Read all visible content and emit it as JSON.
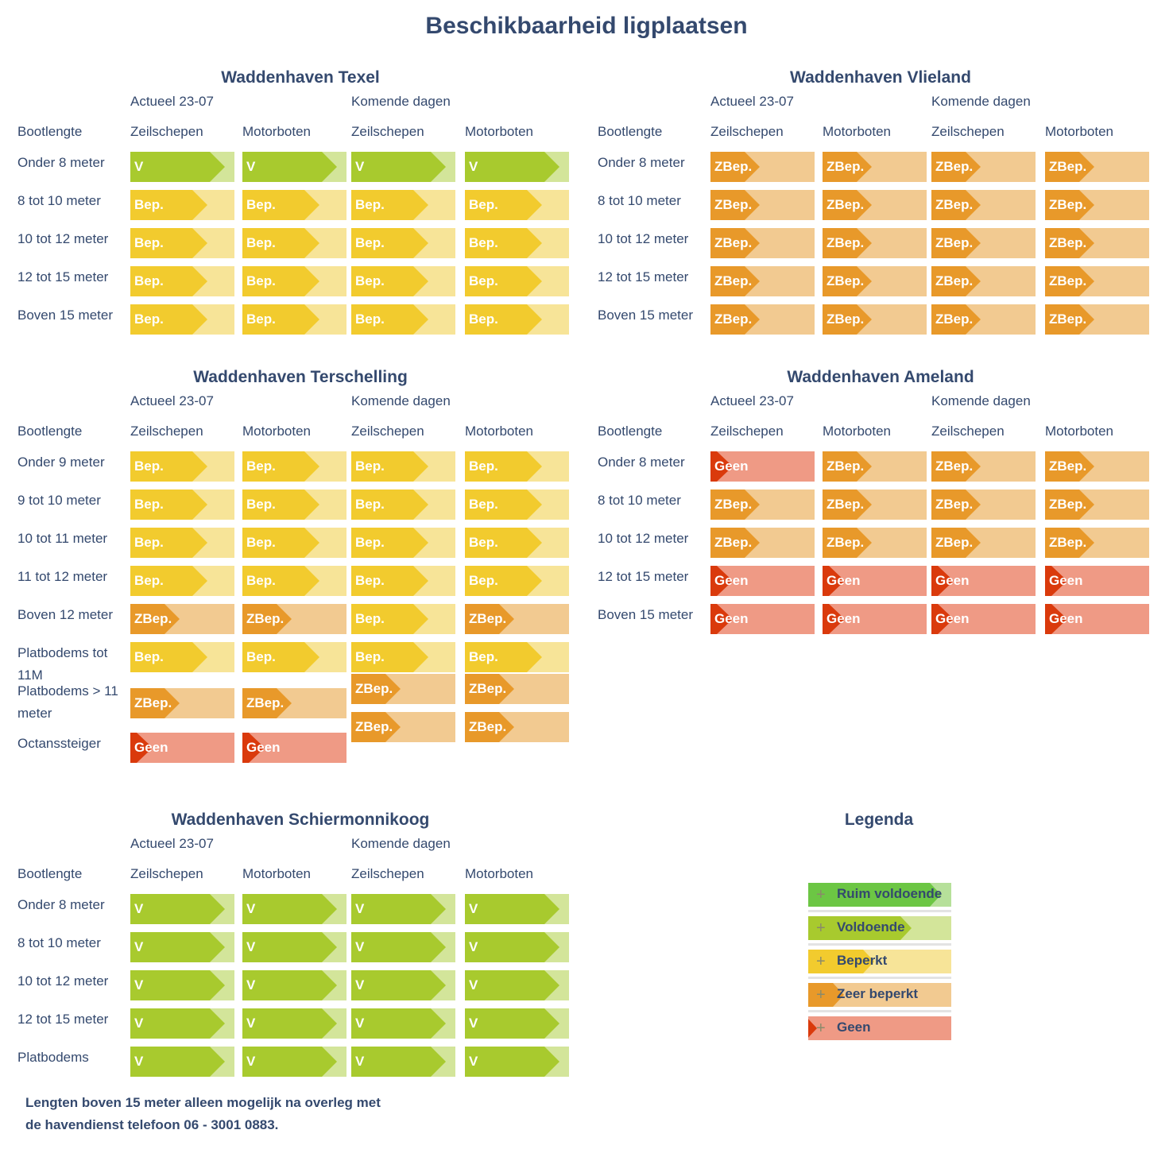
{
  "title": "Beschikbaarheid ligplaatsen",
  "status_colors": {
    "RV": {
      "dark": "#6cc644",
      "light": "#b6e09a",
      "label": "Ruim voldoende"
    },
    "V": {
      "dark": "#a8ca2e",
      "light": "#d3e59a",
      "label": "Voldoende"
    },
    "B": {
      "dark": "#f2cb2e",
      "light": "#f7e498",
      "label": "Beperkt"
    },
    "ZB": {
      "dark": "#e8992a",
      "light": "#f2ca91",
      "label": "Zeer beperkt"
    },
    "G": {
      "dark": "#da3a0c",
      "light": "#ef9a85",
      "label": "Geen"
    }
  },
  "cell_text": {
    "V": "V",
    "B": "Bep.",
    "ZB": "ZBep.",
    "G": "Geen"
  },
  "harbors": [
    {
      "name": "Waddenhaven Texel",
      "periods": [
        "Actueel 23-07",
        "Komende dagen"
      ],
      "columns": [
        "Bootlengte",
        "Zeilschepen",
        "Motorboten",
        "Zeilschepen",
        "Motorboten"
      ],
      "rows": [
        {
          "label": "Onder 8 meter",
          "cells": [
            "V",
            "V",
            "V",
            "V"
          ]
        },
        {
          "label": "8 tot 10 meter",
          "cells": [
            "B",
            "B",
            "B",
            "B"
          ]
        },
        {
          "label": "10 tot 12 meter",
          "cells": [
            "B",
            "B",
            "B",
            "B"
          ]
        },
        {
          "label": "12 tot 15 meter",
          "cells": [
            "B",
            "B",
            "B",
            "B"
          ]
        },
        {
          "label": "Boven 15 meter",
          "cells": [
            "B",
            "B",
            "B",
            "B"
          ]
        }
      ]
    },
    {
      "name": "Waddenhaven Vlieland",
      "periods": [
        "Actueel 23-07",
        "Komende dagen"
      ],
      "columns": [
        "Bootlengte",
        "Zeilschepen",
        "Motorboten",
        "Zeilschepen",
        "Motorboten"
      ],
      "rows": [
        {
          "label": "Onder 8 meter",
          "cells": [
            "ZB",
            "ZB",
            "ZB",
            "ZB"
          ]
        },
        {
          "label": "8 tot 10 meter",
          "cells": [
            "ZB",
            "ZB",
            "ZB",
            "ZB"
          ]
        },
        {
          "label": "10 tot 12 meter",
          "cells": [
            "ZB",
            "ZB",
            "ZB",
            "ZB"
          ]
        },
        {
          "label": "12 tot 15 meter",
          "cells": [
            "ZB",
            "ZB",
            "ZB",
            "ZB"
          ]
        },
        {
          "label": "Boven 15 meter",
          "cells": [
            "ZB",
            "ZB",
            "ZB",
            "ZB"
          ]
        }
      ]
    },
    {
      "name": "Waddenhaven Terschelling",
      "periods": [
        "Actueel 23-07",
        "Komende dagen"
      ],
      "columns": [
        "Bootlengte",
        "Zeilschepen",
        "Motorboten",
        "Zeilschepen",
        "Motorboten"
      ],
      "rows": [
        {
          "label": "Onder 9 meter",
          "cells": [
            "B",
            "B",
            "B",
            "B"
          ]
        },
        {
          "label": "9 tot 10 meter",
          "cells": [
            "B",
            "B",
            "B",
            "B"
          ]
        },
        {
          "label": "10 tot 11 meter",
          "cells": [
            "B",
            "B",
            "B",
            "B"
          ]
        },
        {
          "label": "11 tot 12 meter",
          "cells": [
            "B",
            "B",
            "B",
            "B"
          ]
        },
        {
          "label": "Boven 12 meter",
          "cells": [
            "ZB",
            "ZB",
            "B",
            "ZB"
          ]
        },
        {
          "label": "Platbodems tot 11M",
          "cells": [
            "B",
            "B",
            "B",
            "B"
          ]
        },
        {
          "label": "Platbodems > 11 meter",
          "cells": [
            "ZB",
            "ZB",
            [
              "ZB",
              "ZB"
            ],
            [
              "ZB",
              "ZB"
            ]
          ]
        },
        {
          "label": "Octanssteiger",
          "cells": [
            "G",
            "G",
            null,
            null
          ]
        }
      ]
    },
    {
      "name": "Waddenhaven Ameland",
      "periods": [
        "Actueel 23-07",
        "Komende dagen"
      ],
      "columns": [
        "Bootlengte",
        "Zeilschepen",
        "Motorboten",
        "Zeilschepen",
        "Motorboten"
      ],
      "rows": [
        {
          "label": "Onder 8 meter",
          "cells": [
            "G",
            "ZB",
            "ZB",
            "ZB"
          ]
        },
        {
          "label": "8 tot 10 meter",
          "cells": [
            "ZB",
            "ZB",
            "ZB",
            "ZB"
          ]
        },
        {
          "label": "10 tot 12 meter",
          "cells": [
            "ZB",
            "ZB",
            "ZB",
            "ZB"
          ]
        },
        {
          "label": "12 tot 15 meter",
          "cells": [
            "G",
            "G",
            "G",
            "G"
          ]
        },
        {
          "label": "Boven 15 meter",
          "cells": [
            "G",
            "G",
            "G",
            "G"
          ]
        }
      ]
    },
    {
      "name": "Waddenhaven Schiermonnikoog",
      "periods": [
        "Actueel 23-07",
        "Komende dagen"
      ],
      "columns": [
        "Bootlengte",
        "Zeilschepen",
        "Motorboten",
        "Zeilschepen",
        "Motorboten"
      ],
      "rows": [
        {
          "label": "Onder 8 meter",
          "cells": [
            "V",
            "V",
            "V",
            "V"
          ]
        },
        {
          "label": "8 tot 10 meter",
          "cells": [
            "V",
            "V",
            "V",
            "V"
          ]
        },
        {
          "label": "10 tot 12 meter",
          "cells": [
            "V",
            "V",
            "V",
            "V"
          ]
        },
        {
          "label": "12 tot 15 meter",
          "cells": [
            "V",
            "V",
            "V",
            "V"
          ]
        },
        {
          "label": "Platbodems",
          "cells": [
            "V",
            "V",
            "V",
            "V"
          ]
        }
      ]
    }
  ],
  "legend": {
    "title": "Legenda",
    "items": [
      {
        "key": "RV",
        "label": "Ruim voldoende"
      },
      {
        "key": "V",
        "label": "Voldoende"
      },
      {
        "key": "B",
        "label": "Beperkt"
      },
      {
        "key": "ZB",
        "label": "Zeer beperkt"
      },
      {
        "key": "G",
        "label": "Geen"
      }
    ]
  },
  "footnote": [
    "Lengten boven 15 meter alleen mogelijk na overleg met",
    "de havendienst telefoon 06 - 3001 0883."
  ]
}
